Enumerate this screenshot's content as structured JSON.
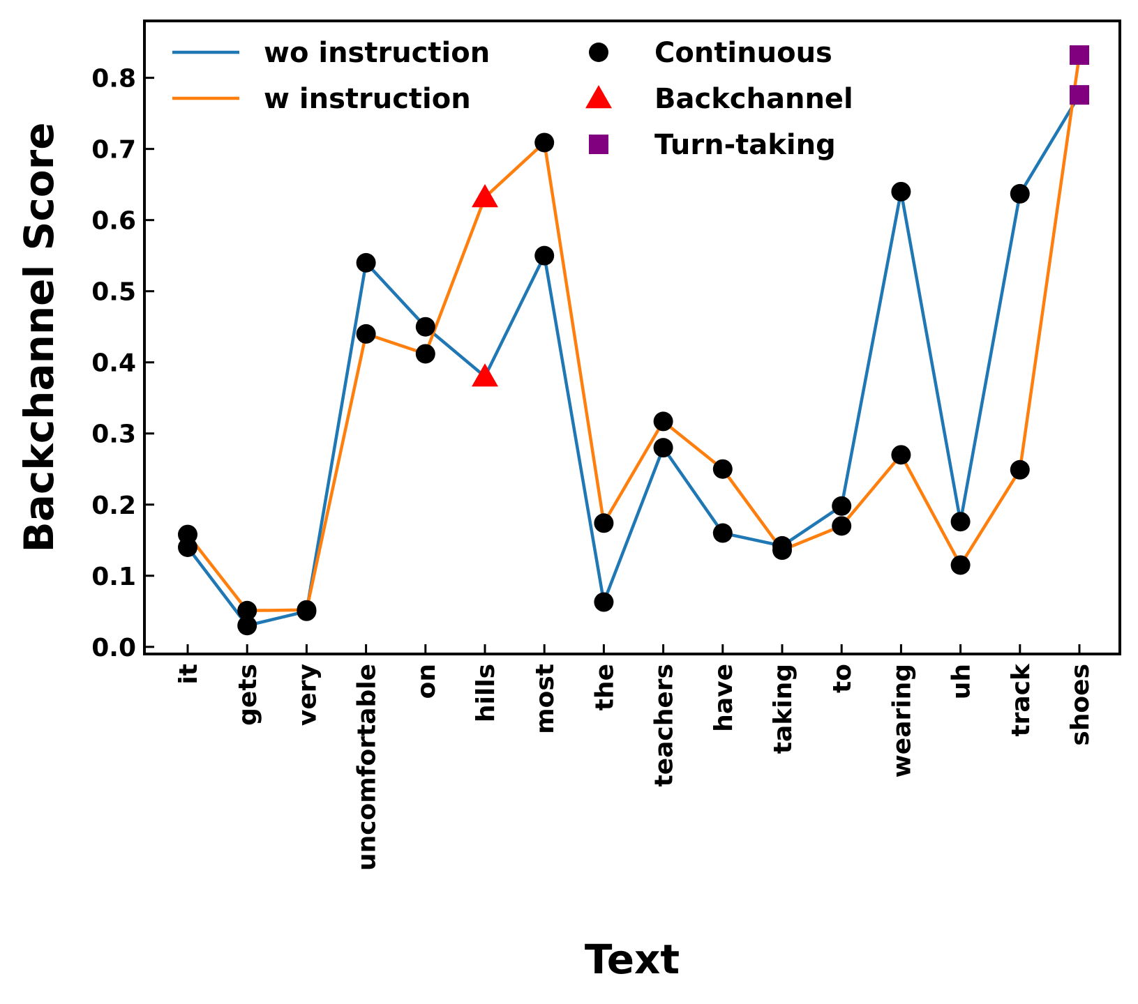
{
  "chart_data": {
    "type": "line",
    "title": "",
    "xlabel": "Text",
    "ylabel": "Backchannel Score",
    "categories": [
      "it",
      "gets",
      "very",
      "uncomfortable",
      "on",
      "hills",
      "most",
      "the",
      "teachers",
      "have",
      "taking",
      "to",
      "wearing",
      "uh",
      "track",
      "shoes"
    ],
    "ylim": [
      -0.01,
      0.88
    ],
    "yticks": [
      "0.0",
      "0.1",
      "0.2",
      "0.3",
      "0.4",
      "0.5",
      "0.6",
      "0.7",
      "0.8"
    ],
    "grid": false,
    "legend_position": "top-left",
    "series": [
      {
        "name": "wo instruction",
        "color": "#1f77b4",
        "values": [
          0.14,
          0.03,
          0.05,
          0.54,
          0.45,
          0.38,
          0.55,
          0.063,
          0.28,
          0.16,
          0.142,
          0.198,
          0.64,
          0.176,
          0.637,
          0.776
        ],
        "markers": [
          "Continuous",
          "Continuous",
          "Continuous",
          "Continuous",
          "Continuous",
          "Backchannel",
          "Continuous",
          "Continuous",
          "Continuous",
          "Continuous",
          "Continuous",
          "Continuous",
          "Continuous",
          "Continuous",
          "Continuous",
          "Turn-taking"
        ]
      },
      {
        "name": "w instruction",
        "color": "#ff7f0e",
        "values": [
          0.158,
          0.051,
          0.052,
          0.44,
          0.412,
          0.632,
          0.709,
          0.174,
          0.317,
          0.25,
          0.136,
          0.17,
          0.27,
          0.115,
          0.249,
          0.832
        ],
        "markers": [
          "Continuous",
          "Continuous",
          "Continuous",
          "Continuous",
          "Continuous",
          "Backchannel",
          "Continuous",
          "Continuous",
          "Continuous",
          "Continuous",
          "Continuous",
          "Continuous",
          "Continuous",
          "Continuous",
          "Continuous",
          "Turn-taking"
        ]
      }
    ],
    "marker_legend": [
      {
        "name": "Continuous",
        "shape": "circle",
        "color": "#000000"
      },
      {
        "name": "Backchannel",
        "shape": "triangle",
        "color": "#ff0000"
      },
      {
        "name": "Turn-taking",
        "shape": "square",
        "color": "#800080"
      }
    ]
  }
}
